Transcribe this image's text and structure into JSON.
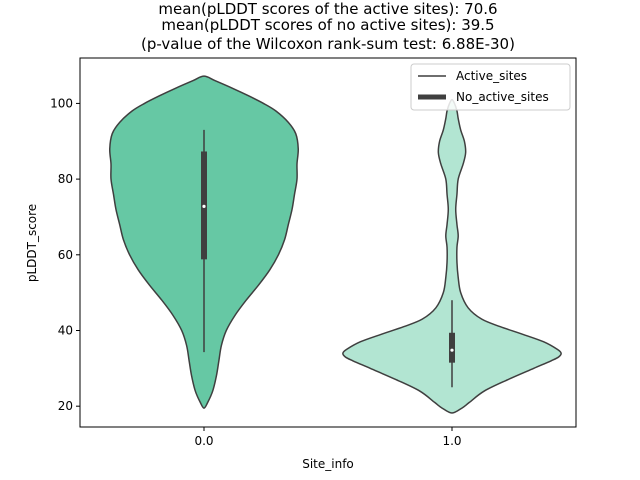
{
  "chart_data": {
    "type": "violin",
    "title_lines": [
      "mean(pLDDT scores of the active sites): 70.6",
      "mean(pLDDT scores of no active sites): 39.5",
      "(p-value of the Wilcoxon rank-sum test: 6.88E-30)"
    ],
    "xlabel": "Site_info",
    "ylabel": "pLDDT_score",
    "categories": [
      "0.0",
      "1.0"
    ],
    "ylim": [
      14.5,
      112
    ],
    "yticks": [
      20,
      40,
      60,
      80,
      100
    ],
    "legend": {
      "placement": "top-right",
      "entries": [
        "Active_sites",
        "No_active_sites"
      ]
    },
    "colors": {
      "violin_0": "#66c8a4",
      "violin_1": "#b2e5d2",
      "outline": "#3f3f3f",
      "box": "#3f3f3f",
      "median": "#ffffff"
    },
    "series": [
      {
        "name": "0.0",
        "median": 72.8,
        "q1": 58.8,
        "q3": 87.3,
        "whisker_low": 34.3,
        "whisker_high": 93,
        "density": [
          [
            19.5,
            0
          ],
          [
            21,
            0.03
          ],
          [
            24,
            0.07
          ],
          [
            28,
            0.1
          ],
          [
            32,
            0.12
          ],
          [
            36,
            0.14
          ],
          [
            40,
            0.18
          ],
          [
            44,
            0.25
          ],
          [
            48,
            0.34
          ],
          [
            52,
            0.44
          ],
          [
            56,
            0.53
          ],
          [
            60,
            0.6
          ],
          [
            64,
            0.65
          ],
          [
            68,
            0.68
          ],
          [
            72,
            0.71
          ],
          [
            76,
            0.73
          ],
          [
            80,
            0.75
          ],
          [
            84,
            0.75
          ],
          [
            88,
            0.76
          ],
          [
            92,
            0.74
          ],
          [
            95,
            0.68
          ],
          [
            98,
            0.58
          ],
          [
            100,
            0.48
          ],
          [
            102,
            0.36
          ],
          [
            104,
            0.23
          ],
          [
            106,
            0.09
          ],
          [
            107.2,
            0
          ]
        ]
      },
      {
        "name": "1.0",
        "median": 34.8,
        "q1": 31.5,
        "q3": 39.4,
        "whisker_low": 25,
        "whisker_high": 48,
        "density": [
          [
            18.2,
            0
          ],
          [
            19.5,
            0.08
          ],
          [
            21,
            0.14
          ],
          [
            24,
            0.26
          ],
          [
            27,
            0.45
          ],
          [
            30,
            0.66
          ],
          [
            32,
            0.8
          ],
          [
            33,
            0.86
          ],
          [
            34,
            0.88
          ],
          [
            35,
            0.85
          ],
          [
            37,
            0.74
          ],
          [
            39,
            0.57
          ],
          [
            41,
            0.39
          ],
          [
            43,
            0.24
          ],
          [
            46,
            0.13
          ],
          [
            50,
            0.07
          ],
          [
            54,
            0.05
          ],
          [
            58,
            0.04
          ],
          [
            62,
            0.04
          ],
          [
            65,
            0.05
          ],
          [
            68,
            0.04
          ],
          [
            72,
            0.03
          ],
          [
            76,
            0.04
          ],
          [
            80,
            0.05
          ],
          [
            84,
            0.09
          ],
          [
            87,
            0.11
          ],
          [
            90,
            0.1
          ],
          [
            93,
            0.07
          ],
          [
            96,
            0.05
          ],
          [
            98,
            0.04
          ],
          [
            100,
            0.02
          ],
          [
            101,
            0
          ]
        ]
      }
    ]
  }
}
